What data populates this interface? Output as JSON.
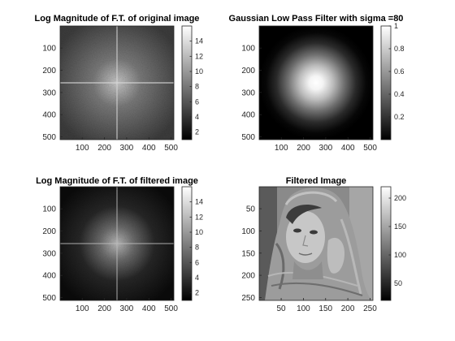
{
  "chart_data": [
    {
      "type": "heatmap",
      "title": "Log Magnitude of F.T. of original image",
      "colormap": "gray",
      "xlim": [
        1,
        512
      ],
      "ylim": [
        1,
        512
      ],
      "y_reversed": true,
      "xticks": [
        100,
        200,
        300,
        400,
        500
      ],
      "yticks": [
        100,
        200,
        300,
        400,
        500
      ],
      "colorbar": {
        "range": [
          1,
          16
        ],
        "ticks": [
          2,
          4,
          6,
          8,
          10,
          12,
          14
        ]
      },
      "pattern": "spectrum",
      "center": [
        256,
        256
      ],
      "spread": 260,
      "peak": 14.5,
      "floor": 3.5
    },
    {
      "type": "heatmap",
      "title": "Gaussian Low Pass Filter with sigma =80",
      "colormap": "gray",
      "xlim": [
        1,
        512
      ],
      "ylim": [
        1,
        512
      ],
      "y_reversed": true,
      "xticks": [
        100,
        200,
        300,
        400,
        500
      ],
      "yticks": [
        100,
        200,
        300,
        400,
        500
      ],
      "colorbar": {
        "range": [
          0,
          1
        ],
        "ticks": [
          0.2,
          0.4,
          0.6,
          0.8,
          1
        ]
      },
      "pattern": "gaussian",
      "center": [
        256,
        256
      ],
      "sigma": 80,
      "peak": 1
    },
    {
      "type": "heatmap",
      "title": "Log Magnitude of F.T. of filtered image",
      "colormap": "gray",
      "xlim": [
        1,
        512
      ],
      "ylim": [
        1,
        512
      ],
      "y_reversed": true,
      "xticks": [
        100,
        200,
        300,
        400,
        500
      ],
      "yticks": [
        100,
        200,
        300,
        400,
        500
      ],
      "colorbar": {
        "range": [
          1,
          16
        ],
        "ticks": [
          2,
          4,
          6,
          8,
          10,
          12,
          14
        ]
      },
      "pattern": "spectrum-filtered",
      "center": [
        256,
        256
      ],
      "sigma": 80,
      "peak": 14.5,
      "floor": 1.5
    },
    {
      "type": "heatmap",
      "title": "Filtered Image",
      "colormap": "gray",
      "xlim": [
        1,
        256
      ],
      "ylim": [
        1,
        256
      ],
      "y_reversed": true,
      "xticks": [
        50,
        100,
        150,
        200,
        250
      ],
      "yticks": [
        50,
        100,
        150,
        200,
        250
      ],
      "colorbar": {
        "range": [
          20,
          220
        ],
        "ticks": [
          50,
          100,
          150,
          200
        ]
      },
      "pattern": "photo",
      "content": "grayscale portrait of a woman wearing a patterned headscarf"
    }
  ]
}
